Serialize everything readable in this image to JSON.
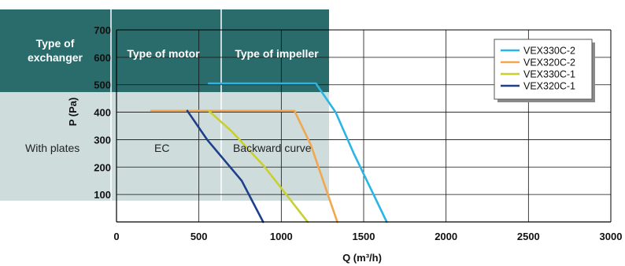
{
  "colors": {
    "header_band": "#2a6b6b",
    "body_band": "#cfdcdc",
    "grid": "#111111",
    "axis": "#000000"
  },
  "spec_table": {
    "headers": [
      {
        "text": "Type of exchanger",
        "lines": [
          "Type of",
          "exchanger"
        ]
      },
      {
        "text": "Type of motor",
        "lines": [
          "Type of motor"
        ]
      },
      {
        "text": "Type of impeller",
        "lines": [
          "Type of impeller"
        ]
      }
    ],
    "values": [
      "With plates",
      "EC",
      "Backward curve"
    ]
  },
  "chart_data": {
    "type": "line",
    "xlabel": "Q (m³/h)",
    "ylabel": "P (Pa)",
    "xlim": [
      0,
      3000
    ],
    "ylim": [
      0,
      700
    ],
    "xticks": [
      0,
      500,
      1000,
      1500,
      2000,
      2500,
      3000
    ],
    "yticks": [
      100,
      200,
      300,
      400,
      500,
      600,
      700
    ],
    "grid": true,
    "legend_position": "top-right",
    "series": [
      {
        "name": "VEX330C-2",
        "color": "#29b5e6",
        "points": [
          [
            560,
            505
          ],
          [
            1210,
            505
          ],
          [
            1330,
            400
          ],
          [
            1440,
            250
          ],
          [
            1640,
            0
          ]
        ]
      },
      {
        "name": "VEX320C-2",
        "color": "#f0a850",
        "points": [
          [
            210,
            405
          ],
          [
            1080,
            405
          ],
          [
            1180,
            280
          ],
          [
            1340,
            0
          ]
        ]
      },
      {
        "name": "VEX330C-1",
        "color": "#c8d030",
        "points": [
          [
            560,
            405
          ],
          [
            700,
            330
          ],
          [
            900,
            200
          ],
          [
            1160,
            0
          ]
        ]
      },
      {
        "name": "VEX320C-1",
        "color": "#1e3f8c",
        "points": [
          [
            430,
            405
          ],
          [
            550,
            300
          ],
          [
            760,
            150
          ],
          [
            890,
            0
          ]
        ]
      }
    ]
  }
}
